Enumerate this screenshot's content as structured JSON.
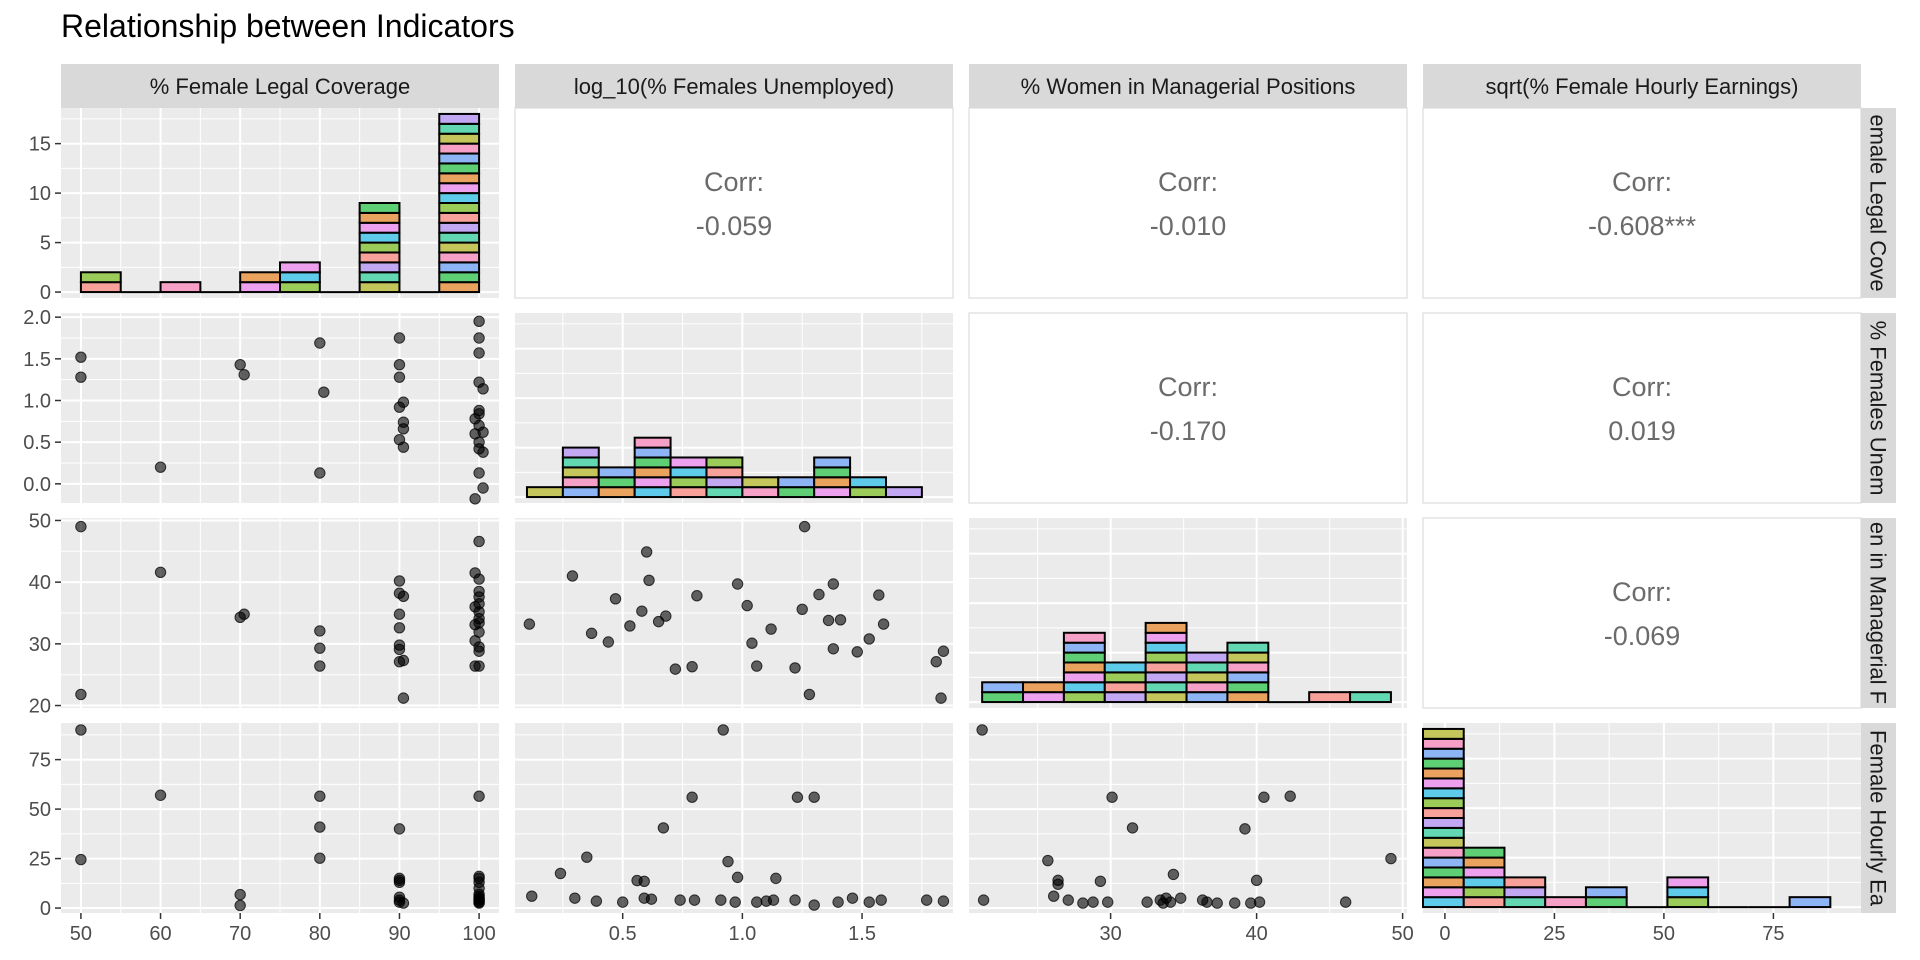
{
  "title": "Relationship between Indicators",
  "chart_data": {
    "type": "scatter-matrix",
    "variables": [
      "% Female Legal Coverage",
      "log_10(% Females Unemployed)",
      "% Women in Managerial Positions",
      "sqrt(% Female Hourly Earnings)"
    ],
    "row_strip_labels": [
      "emale Legal Cove",
      "% Females Unem",
      "en in Managerial F",
      "Female Hourly Ea"
    ],
    "axes": [
      {
        "lim": [
          47.5,
          102.5
        ],
        "ticks": [
          50,
          60,
          70,
          80,
          90,
          100
        ]
      },
      {
        "lim": [
          0.05,
          1.88
        ],
        "ticks": [
          0.5,
          1.0,
          1.5
        ],
        "tick_labels": [
          "0.5",
          "1.0",
          "1.5"
        ],
        "row_lim": [
          -0.23,
          2.05
        ],
        "row_ticks": [
          0.0,
          0.5,
          1.0,
          1.5,
          2.0
        ],
        "row_tick_labels": [
          "0.0",
          "0.5",
          "1.0",
          "1.5",
          "2.0"
        ]
      },
      {
        "lim": [
          20.3,
          50.3
        ],
        "ticks": [
          30,
          40,
          50
        ],
        "row_lim": [
          19.6,
          50.4
        ],
        "row_ticks": [
          20,
          30,
          40,
          50
        ]
      },
      {
        "lim": [
          -5.0,
          95.0
        ],
        "ticks": [
          0,
          25,
          50,
          75
        ],
        "row_lim": [
          -2.5,
          93.5
        ],
        "row_ticks": [
          0,
          25,
          50,
          75
        ]
      }
    ],
    "hist_count_axis": {
      "lim": [
        -0.6,
        18.6
      ],
      "ticks": [
        0,
        5,
        10,
        15
      ]
    },
    "histograms": [
      {
        "edges": [
          50,
          55,
          60,
          65,
          70,
          75,
          80,
          85,
          90,
          95,
          100
        ],
        "counts": [
          2,
          0,
          1,
          0,
          2,
          3,
          0,
          9,
          0,
          18
        ]
      },
      {
        "edges": [
          0.1,
          0.25,
          0.4,
          0.55,
          0.7,
          0.85,
          1.0,
          1.15,
          1.3,
          1.45,
          1.6,
          1.75
        ],
        "counts": [
          1,
          5,
          3,
          6,
          4,
          4,
          2,
          2,
          4,
          2,
          1
        ]
      },
      {
        "edges": [
          21.2,
          24.0,
          26.8,
          29.6,
          32.4,
          35.2,
          38.0,
          40.8,
          43.6,
          46.4,
          49.2
        ],
        "counts": [
          2,
          2,
          7,
          4,
          8,
          5,
          6,
          0,
          1,
          1
        ]
      },
      {
        "edges": [
          -5.0,
          4.3,
          13.6,
          22.9,
          32.2,
          41.5,
          50.8,
          60.1,
          69.4,
          78.7,
          88.0
        ],
        "counts": [
          18,
          6,
          3,
          1,
          2,
          0,
          3,
          0,
          0,
          1
        ]
      }
    ],
    "correlations": [
      {
        "row": 0,
        "col": 1,
        "label": "Corr:",
        "value": "-0.059"
      },
      {
        "row": 0,
        "col": 2,
        "label": "Corr:",
        "value": "-0.010"
      },
      {
        "row": 0,
        "col": 3,
        "label": "Corr:",
        "value": "-0.608***"
      },
      {
        "row": 1,
        "col": 2,
        "label": "Corr:",
        "value": "-0.170"
      },
      {
        "row": 1,
        "col": 3,
        "label": "Corr:",
        "value": "0.019"
      },
      {
        "row": 2,
        "col": 3,
        "label": "Corr:",
        "value": "-0.069"
      }
    ],
    "scatter": [
      {
        "row": 1,
        "col": 0,
        "points": [
          [
            50,
            1.52
          ],
          [
            50,
            1.28
          ],
          [
            60,
            0.2
          ],
          [
            70,
            1.43
          ],
          [
            70.5,
            1.31
          ],
          [
            80,
            1.69
          ],
          [
            80.5,
            1.1
          ],
          [
            80,
            0.13
          ],
          [
            90,
            1.75
          ],
          [
            90,
            1.43
          ],
          [
            90,
            1.28
          ],
          [
            90.5,
            0.98
          ],
          [
            90,
            0.92
          ],
          [
            90.5,
            0.74
          ],
          [
            90.5,
            0.66
          ],
          [
            90,
            0.53
          ],
          [
            90.5,
            0.44
          ],
          [
            100,
            1.95
          ],
          [
            100,
            1.75
          ],
          [
            100,
            1.57
          ],
          [
            100,
            1.22
          ],
          [
            100.5,
            1.14
          ],
          [
            100,
            0.88
          ],
          [
            100,
            0.84
          ],
          [
            99.5,
            0.78
          ],
          [
            100,
            0.7
          ],
          [
            100.5,
            0.62
          ],
          [
            99.5,
            0.6
          ],
          [
            100,
            0.5
          ],
          [
            100,
            0.42
          ],
          [
            100.5,
            0.38
          ],
          [
            100,
            0.13
          ],
          [
            100.5,
            -0.05
          ],
          [
            99.5,
            -0.18
          ]
        ]
      },
      {
        "row": 2,
        "col": 0,
        "points": [
          [
            50,
            49
          ],
          [
            50,
            21.8
          ],
          [
            60,
            41.6
          ],
          [
            70,
            34.3
          ],
          [
            70.5,
            34.8
          ],
          [
            80,
            32.1
          ],
          [
            80,
            29.3
          ],
          [
            80,
            26.4
          ],
          [
            90,
            40.2
          ],
          [
            90,
            38.2
          ],
          [
            90.5,
            37.7
          ],
          [
            90,
            34.8
          ],
          [
            90,
            32.6
          ],
          [
            90,
            29.8
          ],
          [
            90,
            29.1
          ],
          [
            90.5,
            27.3
          ],
          [
            90,
            27.1
          ],
          [
            90.5,
            21.2
          ],
          [
            100,
            46.6
          ],
          [
            99.5,
            41.5
          ],
          [
            100,
            40.5
          ],
          [
            100,
            38.5
          ],
          [
            100,
            37.6
          ],
          [
            100,
            36.5
          ],
          [
            99.5,
            36
          ],
          [
            100,
            35.2
          ],
          [
            100,
            34.1
          ],
          [
            100,
            33.4
          ],
          [
            99.5,
            33.1
          ],
          [
            100,
            31.9
          ],
          [
            99.5,
            30.5
          ],
          [
            100,
            29.5
          ],
          [
            100,
            28.8
          ],
          [
            99.5,
            26.4
          ],
          [
            100,
            26.4
          ]
        ]
      },
      {
        "row": 2,
        "col": 1,
        "points": [
          [
            0.11,
            33.2
          ],
          [
            0.29,
            41
          ],
          [
            0.37,
            31.7
          ],
          [
            0.44,
            30.3
          ],
          [
            0.47,
            37.3
          ],
          [
            0.53,
            32.9
          ],
          [
            0.58,
            35.3
          ],
          [
            0.6,
            44.9
          ],
          [
            0.61,
            40.3
          ],
          [
            0.65,
            33.6
          ],
          [
            0.68,
            34.5
          ],
          [
            0.72,
            25.9
          ],
          [
            0.79,
            26.3
          ],
          [
            0.81,
            37.8
          ],
          [
            0.98,
            39.7
          ],
          [
            1.02,
            36.2
          ],
          [
            1.04,
            30.1
          ],
          [
            1.06,
            26.4
          ],
          [
            1.12,
            32.4
          ],
          [
            1.22,
            26.1
          ],
          [
            1.26,
            49
          ],
          [
            1.25,
            35.6
          ],
          [
            1.28,
            21.8
          ],
          [
            1.32,
            38
          ],
          [
            1.36,
            33.8
          ],
          [
            1.38,
            29.2
          ],
          [
            1.38,
            39.7
          ],
          [
            1.41,
            33.9
          ],
          [
            1.48,
            28.7
          ],
          [
            1.53,
            30.8
          ],
          [
            1.57,
            37.9
          ],
          [
            1.59,
            33.2
          ],
          [
            1.81,
            27.1
          ],
          [
            1.84,
            28.8
          ],
          [
            1.83,
            21.2
          ]
        ]
      },
      {
        "row": 3,
        "col": 0,
        "points": [
          [
            50,
            90
          ],
          [
            50,
            24.5
          ],
          [
            60,
            57
          ],
          [
            70,
            6.8
          ],
          [
            70,
            1.3
          ],
          [
            80,
            56.5
          ],
          [
            80,
            40.9
          ],
          [
            80,
            25.2
          ],
          [
            90,
            40
          ],
          [
            90,
            15
          ],
          [
            90,
            14
          ],
          [
            90,
            13
          ],
          [
            90,
            5.5
          ],
          [
            90,
            4
          ],
          [
            90,
            3
          ],
          [
            90.5,
            2.5
          ],
          [
            100,
            56.5
          ],
          [
            100,
            16
          ],
          [
            100,
            15
          ],
          [
            100,
            13
          ],
          [
            100,
            10
          ],
          [
            100,
            7
          ],
          [
            100,
            6
          ],
          [
            100,
            5
          ],
          [
            100,
            4.5
          ],
          [
            100,
            4
          ],
          [
            100,
            3.5
          ],
          [
            100,
            3
          ],
          [
            100,
            2.5
          ]
        ]
      },
      {
        "row": 3,
        "col": 1,
        "points": [
          [
            0.12,
            6
          ],
          [
            0.24,
            17.5
          ],
          [
            0.3,
            5
          ],
          [
            0.35,
            25.7
          ],
          [
            0.39,
            3.5
          ],
          [
            0.5,
            3
          ],
          [
            0.56,
            13.9
          ],
          [
            0.59,
            13.5
          ],
          [
            0.59,
            5
          ],
          [
            0.62,
            4.5
          ],
          [
            0.67,
            40.5
          ],
          [
            0.74,
            4
          ],
          [
            0.79,
            56
          ],
          [
            0.8,
            4
          ],
          [
            0.91,
            4
          ],
          [
            0.92,
            90
          ],
          [
            0.94,
            23.5
          ],
          [
            0.97,
            3
          ],
          [
            0.98,
            15.5
          ],
          [
            1.06,
            3
          ],
          [
            1.1,
            3.5
          ],
          [
            1.13,
            4
          ],
          [
            1.14,
            15
          ],
          [
            1.22,
            4
          ],
          [
            1.23,
            56
          ],
          [
            1.3,
            56
          ],
          [
            1.3,
            1.5
          ],
          [
            1.4,
            3
          ],
          [
            1.46,
            5
          ],
          [
            1.53,
            3
          ],
          [
            1.58,
            4
          ],
          [
            1.77,
            4
          ],
          [
            1.84,
            3.5
          ]
        ]
      },
      {
        "row": 3,
        "col": 2,
        "points": [
          [
            21.2,
            90
          ],
          [
            21.3,
            4
          ],
          [
            25.7,
            24
          ],
          [
            26.1,
            6
          ],
          [
            26.4,
            12
          ],
          [
            26.4,
            14
          ],
          [
            27.1,
            4
          ],
          [
            28.1,
            2.5
          ],
          [
            28.8,
            3
          ],
          [
            29.3,
            13.5
          ],
          [
            29.8,
            3
          ],
          [
            30.1,
            56
          ],
          [
            31.5,
            40.5
          ],
          [
            32.5,
            3
          ],
          [
            33.4,
            4
          ],
          [
            33.6,
            2.5
          ],
          [
            33.8,
            5
          ],
          [
            34.1,
            3
          ],
          [
            34.3,
            17
          ],
          [
            34.8,
            5
          ],
          [
            36.3,
            4
          ],
          [
            36.6,
            3
          ],
          [
            37.3,
            2.5
          ],
          [
            38.5,
            2.5
          ],
          [
            39.2,
            40
          ],
          [
            39.6,
            2.5
          ],
          [
            40,
            14
          ],
          [
            40.2,
            3
          ],
          [
            40.5,
            56
          ],
          [
            42.3,
            56.5
          ],
          [
            46.1,
            3
          ],
          [
            49.2,
            25
          ]
        ]
      }
    ]
  }
}
